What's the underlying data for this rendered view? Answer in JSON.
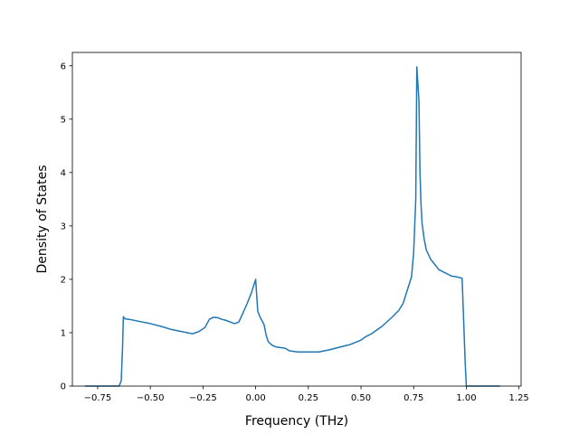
{
  "chart_data": {
    "type": "line",
    "title": "",
    "xlabel": "Frequency (THz)",
    "ylabel": "Density of States",
    "xlim": [
      -0.87,
      1.26
    ],
    "ylim": [
      0,
      6.25
    ],
    "xticks": [
      -0.75,
      -0.5,
      -0.25,
      0.0,
      0.25,
      0.5,
      0.75,
      1.0,
      1.25
    ],
    "xtick_labels": [
      "−0.75",
      "−0.50",
      "−0.25",
      "0.00",
      "0.25",
      "0.50",
      "0.75",
      "1.00",
      "1.25"
    ],
    "yticks": [
      0,
      1,
      2,
      3,
      4,
      5,
      6
    ],
    "ytick_labels": [
      "0",
      "1",
      "2",
      "3",
      "4",
      "5",
      "6"
    ],
    "grid": false,
    "legend": "none",
    "color": "#1f77b4",
    "series": [
      {
        "x": [
          -0.81,
          -0.7,
          -0.648,
          -0.638,
          -0.632,
          -0.628,
          -0.62,
          -0.6,
          -0.55,
          -0.5,
          -0.45,
          -0.4,
          -0.35,
          -0.3,
          -0.27,
          -0.24,
          -0.22,
          -0.2,
          -0.18,
          -0.16,
          -0.14,
          -0.12,
          -0.1,
          -0.08,
          -0.06,
          -0.04,
          -0.02,
          0.0,
          0.01,
          0.02,
          0.04,
          0.05,
          0.06,
          0.08,
          0.1,
          0.14,
          0.16,
          0.2,
          0.25,
          0.3,
          0.35,
          0.4,
          0.45,
          0.5,
          0.52,
          0.55,
          0.6,
          0.65,
          0.68,
          0.7,
          0.72,
          0.74,
          0.75,
          0.755,
          0.76,
          0.765,
          0.775,
          0.78,
          0.785,
          0.79,
          0.8,
          0.81,
          0.83,
          0.85,
          0.87,
          0.9,
          0.93,
          0.95,
          0.98,
          0.995,
          1.0,
          1.01,
          1.05,
          1.1,
          1.16
        ],
        "y": [
          0,
          0,
          0,
          0.1,
          0.7,
          1.3,
          1.26,
          1.25,
          1.21,
          1.17,
          1.12,
          1.06,
          1.02,
          0.98,
          1.02,
          1.1,
          1.25,
          1.29,
          1.28,
          1.25,
          1.23,
          1.2,
          1.17,
          1.2,
          1.37,
          1.55,
          1.75,
          2.0,
          1.4,
          1.3,
          1.15,
          0.95,
          0.83,
          0.76,
          0.73,
          0.71,
          0.66,
          0.64,
          0.64,
          0.64,
          0.68,
          0.73,
          0.78,
          0.86,
          0.92,
          0.98,
          1.12,
          1.3,
          1.42,
          1.55,
          1.8,
          2.05,
          2.5,
          3.0,
          3.5,
          5.98,
          5.35,
          4.0,
          3.4,
          3.05,
          2.75,
          2.55,
          2.38,
          2.28,
          2.18,
          2.12,
          2.06,
          2.05,
          2.02,
          0.4,
          0.0,
          0.0,
          0.0,
          0.0,
          0.0
        ]
      }
    ]
  }
}
